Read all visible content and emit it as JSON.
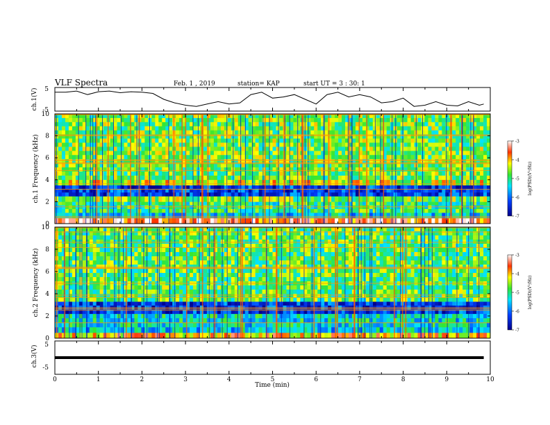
{
  "header": {
    "title": "VLF Spectra",
    "date": "Feb. 1 , 2019",
    "station": "station= KAP",
    "start": "start  UT =  3 : 30: 1"
  },
  "chart_data": [
    {
      "type": "line",
      "panel": "ch1-waveform",
      "ylabel": "ch.1(V)",
      "ylim": [
        -5,
        5
      ],
      "yticks": [
        "5",
        "-5"
      ],
      "xlim": [
        0,
        10
      ],
      "x": [
        0,
        0.25,
        0.5,
        0.75,
        1.0,
        1.25,
        1.5,
        1.75,
        2.0,
        2.25,
        2.5,
        2.75,
        3.0,
        3.25,
        3.5,
        3.75,
        4.0,
        4.25,
        4.5,
        4.75,
        5.0,
        5.25,
        5.5,
        5.75,
        6.0,
        6.25,
        6.5,
        6.75,
        7.0,
        7.25,
        7.5,
        7.75,
        8.0,
        8.25,
        8.5,
        8.75,
        9.0,
        9.25,
        9.5,
        9.75,
        9.85
      ],
      "values": [
        3,
        3,
        3.5,
        2,
        3.2,
        3.5,
        2.8,
        3.2,
        3,
        2.5,
        0,
        -1.5,
        -2.5,
        -3,
        -2,
        -1,
        -2,
        -1.5,
        2,
        3,
        0.5,
        1,
        2,
        0,
        -2,
        2,
        3,
        1,
        2,
        1,
        -1.5,
        -1,
        0.5,
        -3,
        -2.5,
        -1,
        -2.5,
        -2.8,
        -1,
        -2.5,
        -2
      ]
    },
    {
      "type": "heatmap",
      "panel": "ch1-spectrogram",
      "ylabel": "ch.1 Frequency (kHz)",
      "ylim": [
        0,
        10
      ],
      "yticks": [
        "0",
        "2",
        "4",
        "6",
        "8",
        "10"
      ],
      "xlim": [
        0,
        10
      ],
      "colorbar": {
        "label": "log(PSD)(V²/Hz)",
        "range": [
          -7,
          -3
        ],
        "ticks": [
          "-3",
          "-4",
          "-5",
          "-6",
          "-7"
        ]
      },
      "bands": [
        {
          "from": 0,
          "to": 0.5,
          "level": -3.5
        },
        {
          "from": 0.5,
          "to": 1.0,
          "level": -5.5
        },
        {
          "from": 1.0,
          "to": 2.0,
          "level": -5.0
        },
        {
          "from": 2.0,
          "to": 2.5,
          "level": -4.6
        },
        {
          "from": 2.5,
          "to": 3.5,
          "level": -6.3
        },
        {
          "from": 3.5,
          "to": 4.0,
          "level": -4.3
        },
        {
          "from": 4.0,
          "to": 10.0,
          "level": -4.7
        }
      ]
    },
    {
      "type": "heatmap",
      "panel": "ch2-spectrogram",
      "ylabel": "ch.2 Frequency (kHz)",
      "ylim": [
        0,
        10
      ],
      "yticks": [
        "0",
        "2",
        "4",
        "6",
        "8",
        "10"
      ],
      "xlim": [
        0,
        10
      ],
      "colorbar": {
        "label": "log(PSD)(V²/Hz)",
        "range": [
          -7,
          -3
        ],
        "ticks": [
          "-3",
          "-4",
          "-5",
          "-6",
          "-7"
        ]
      },
      "bands": [
        {
          "from": 0,
          "to": 0.5,
          "level": -4.0
        },
        {
          "from": 0.5,
          "to": 1.0,
          "level": -5.5
        },
        {
          "from": 1.0,
          "to": 2.2,
          "level": -5.3
        },
        {
          "from": 2.2,
          "to": 3.3,
          "level": -6.3
        },
        {
          "from": 3.3,
          "to": 4.0,
          "level": -4.8
        },
        {
          "from": 4.0,
          "to": 10.0,
          "level": -4.8
        }
      ]
    },
    {
      "type": "line",
      "panel": "ch3-waveform",
      "ylabel": "ch.3(V)",
      "ylim": [
        -5,
        5
      ],
      "yticks": [
        "5",
        "-5"
      ],
      "xlim": [
        0,
        10
      ],
      "x": [
        0,
        9.85
      ],
      "values": [
        0,
        0
      ]
    }
  ],
  "xaxis": {
    "label": "Time  (min)",
    "ticks": [
      "0",
      "1",
      "2",
      "3",
      "4",
      "5",
      "6",
      "7",
      "8",
      "9",
      "10"
    ]
  }
}
